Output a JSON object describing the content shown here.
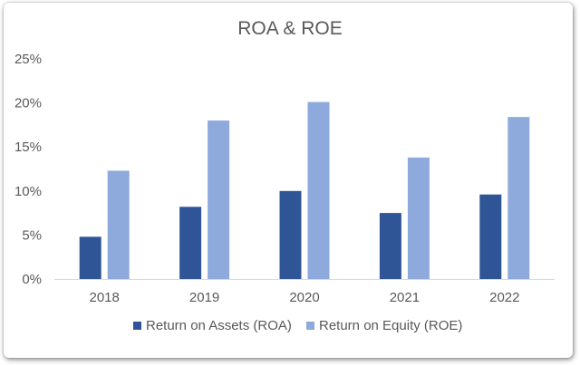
{
  "chart_data": {
    "type": "bar",
    "title": "ROA & ROE",
    "categories": [
      "2018",
      "2019",
      "2020",
      "2021",
      "2022"
    ],
    "series": [
      {
        "name": "Return on Assets (ROA)",
        "values": [
          4.8,
          8.2,
          10.0,
          7.5,
          9.6
        ],
        "color": "#2f5597"
      },
      {
        "name": "Return on Equity (ROE)",
        "values": [
          12.3,
          18.0,
          20.1,
          13.8,
          18.4
        ],
        "color": "#8eaadc"
      }
    ],
    "ylim": [
      0,
      25
    ],
    "yticks": [
      0,
      5,
      10,
      15,
      20,
      25
    ],
    "ytick_labels": [
      "0%",
      "5%",
      "10%",
      "15%",
      "20%",
      "25%"
    ],
    "xlabel": "",
    "ylabel": "",
    "grid": false,
    "legend_position": "bottom"
  }
}
